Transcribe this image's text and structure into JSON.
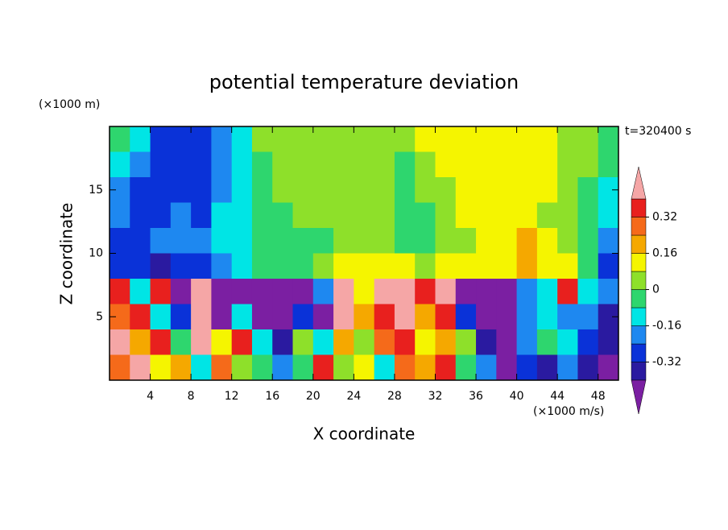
{
  "chart_data": {
    "type": "contour",
    "title": "potential temperature deviation",
    "y_unit": "(×1000 m)",
    "x_unit": "(×1000 m/s)",
    "xlabel": "X coordinate",
    "ylabel": "Z coordinate",
    "time_label": "t=320400 s",
    "xlim": [
      0,
      50
    ],
    "ylim": [
      0,
      20
    ],
    "xticks": [
      4,
      8,
      12,
      16,
      20,
      24,
      28,
      32,
      36,
      40,
      44,
      48
    ],
    "yticks": [
      5,
      10,
      15
    ],
    "x": [
      1,
      3,
      5,
      7,
      9,
      11,
      13,
      15,
      17,
      19,
      21,
      23,
      25,
      27,
      29,
      31,
      33,
      35,
      37,
      39,
      41,
      43,
      45,
      47,
      49
    ],
    "y": [
      19,
      17,
      15,
      13,
      11,
      9,
      7,
      5,
      3,
      1
    ],
    "z": [
      [
        -0.04,
        -0.12,
        -0.28,
        -0.28,
        -0.28,
        -0.2,
        -0.12,
        0.04,
        0.04,
        0.04,
        0.04,
        0.04,
        0.04,
        0.04,
        0.04,
        0.12,
        0.12,
        0.12,
        0.12,
        0.12,
        0.12,
        0.12,
        0.04,
        0.04,
        -0.04
      ],
      [
        -0.12,
        -0.2,
        -0.28,
        -0.28,
        -0.28,
        -0.2,
        -0.12,
        -0.04,
        0.04,
        0.04,
        0.04,
        0.04,
        0.04,
        0.04,
        -0.04,
        0.04,
        0.12,
        0.12,
        0.12,
        0.12,
        0.12,
        0.12,
        0.04,
        0.04,
        -0.04
      ],
      [
        -0.2,
        -0.28,
        -0.28,
        -0.28,
        -0.28,
        -0.2,
        -0.12,
        -0.04,
        0.04,
        0.04,
        0.04,
        0.04,
        0.04,
        0.04,
        -0.04,
        0.04,
        0.04,
        0.12,
        0.12,
        0.12,
        0.12,
        0.12,
        0.04,
        -0.04,
        -0.12
      ],
      [
        -0.2,
        -0.28,
        -0.28,
        -0.2,
        -0.28,
        -0.12,
        -0.12,
        -0.04,
        -0.04,
        0.04,
        0.04,
        0.04,
        0.04,
        0.04,
        -0.04,
        -0.04,
        0.04,
        0.12,
        0.12,
        0.12,
        0.12,
        0.04,
        0.04,
        -0.04,
        -0.12
      ],
      [
        -0.28,
        -0.28,
        -0.2,
        -0.2,
        -0.2,
        -0.12,
        -0.12,
        -0.04,
        -0.04,
        -0.04,
        -0.04,
        0.04,
        0.04,
        0.04,
        -0.04,
        -0.04,
        0.04,
        0.04,
        0.12,
        0.12,
        0.2,
        0.12,
        0.04,
        -0.04,
        -0.2
      ],
      [
        -0.28,
        -0.28,
        -0.36,
        -0.28,
        -0.28,
        -0.2,
        -0.12,
        -0.04,
        -0.04,
        -0.04,
        0.04,
        0.12,
        0.12,
        0.12,
        0.12,
        0.04,
        0.12,
        0.12,
        0.12,
        0.12,
        0.2,
        0.12,
        0.12,
        -0.04,
        -0.28
      ],
      [
        0.36,
        -0.12,
        0.36,
        -0.45,
        0.45,
        -0.45,
        -0.45,
        -0.45,
        -0.45,
        -0.45,
        -0.2,
        0.45,
        0.12,
        0.45,
        0.45,
        0.36,
        0.45,
        -0.45,
        -0.45,
        -0.45,
        -0.2,
        -0.12,
        0.36,
        -0.12,
        -0.2
      ],
      [
        0.28,
        0.36,
        -0.12,
        -0.28,
        0.45,
        -0.45,
        -0.12,
        -0.45,
        -0.45,
        -0.28,
        -0.45,
        0.45,
        0.2,
        0.36,
        0.45,
        0.2,
        0.36,
        -0.28,
        -0.45,
        -0.45,
        -0.2,
        -0.12,
        -0.2,
        -0.2,
        -0.36
      ],
      [
        0.45,
        0.2,
        0.36,
        -0.04,
        0.45,
        0.12,
        0.36,
        -0.12,
        -0.36,
        0.04,
        -0.12,
        0.2,
        0.04,
        0.28,
        0.36,
        0.12,
        0.2,
        0.04,
        -0.36,
        -0.45,
        -0.2,
        -0.04,
        -0.12,
        -0.28,
        -0.36
      ],
      [
        0.28,
        0.45,
        0.12,
        0.2,
        -0.12,
        0.28,
        0.04,
        -0.04,
        -0.2,
        -0.04,
        0.36,
        0.04,
        0.12,
        -0.12,
        0.28,
        0.2,
        0.36,
        -0.04,
        -0.2,
        -0.45,
        -0.28,
        -0.36,
        -0.2,
        -0.36,
        -0.45
      ]
    ],
    "levels": [
      -0.4,
      -0.32,
      -0.24,
      -0.16,
      -0.08,
      0,
      0.08,
      0.16,
      0.24,
      0.32,
      0.4
    ],
    "colors": [
      "#7b1fa2",
      "#2a1aa0",
      "#0a32d8",
      "#1e88f0",
      "#00e5e5",
      "#2ed66e",
      "#8ee02a",
      "#f5f500",
      "#f5a800",
      "#f56a1a",
      "#e8201e",
      "#f5a6a6"
    ],
    "colorbar_ticks": [
      -0.32,
      -0.16,
      0,
      0.16,
      0.32
    ]
  }
}
